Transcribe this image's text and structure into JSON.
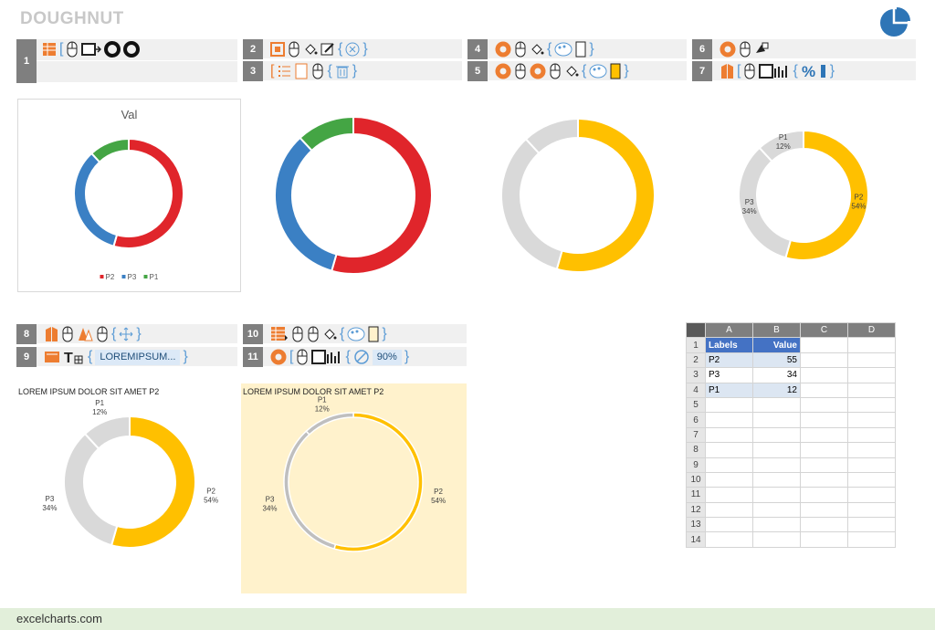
{
  "header": {
    "title": "DOUGHNUT",
    "brand_color": "#2e75b6"
  },
  "steps": [
    {
      "num": "1",
      "icons": [
        "table-orange-icon",
        "mouse-icon",
        "insert-chart-icon",
        "doughnut-black-icon"
      ]
    },
    {
      "num": "2",
      "icons": [
        "format-area-icon",
        "mouse-icon",
        "fill-icon",
        "edit-icon",
        "delete-circle-icon"
      ]
    },
    {
      "num": "3",
      "icons": [
        "legend-icon",
        "mouse-icon",
        "delete-icon"
      ]
    },
    {
      "num": "4",
      "icons": [
        "doughnut-orange-icon",
        "mouse-icon",
        "fill-icon",
        "palette-icon"
      ]
    },
    {
      "num": "5",
      "icons": [
        "doughnut-orange-icon",
        "mouse-icon",
        "fill-icon",
        "palette-icon"
      ]
    },
    {
      "num": "6",
      "icons": [
        "doughnut-orange-icon",
        "mouse-icon",
        "data-labels-icon"
      ]
    },
    {
      "num": "7",
      "icons": [
        "labels-orange-icon",
        "mouse-icon",
        "bars-icon",
        "percent-icon"
      ]
    },
    {
      "num": "8",
      "icons": [
        "labels-orange-icon",
        "mouse-icon",
        "move-icon"
      ]
    },
    {
      "num": "9",
      "icons": [
        "title-icon",
        "text-icon"
      ],
      "field": "LOREMIPSUM..."
    },
    {
      "num": "10",
      "icons": [
        "table-orange-icon",
        "mouse-icon",
        "fill-icon",
        "palette-icon"
      ]
    },
    {
      "num": "11",
      "icons": [
        "doughnut-orange-icon",
        "mouse-icon",
        "bars-icon",
        "no-icon"
      ],
      "field": "90%"
    }
  ],
  "chart_data": [
    {
      "type": "pie",
      "variant": "doughnut",
      "title": "Val",
      "categories": [
        "P2",
        "P3",
        "P1"
      ],
      "values": [
        55,
        34,
        12
      ],
      "colors": [
        "#e0252b",
        "#3b80c4",
        "#44a544"
      ],
      "legend": [
        "P2",
        "P3",
        "P1"
      ],
      "legend_position": "bottom"
    },
    {
      "type": "pie",
      "variant": "doughnut",
      "title": "",
      "categories": [
        "P2",
        "P3",
        "P1"
      ],
      "values": [
        55,
        34,
        12
      ],
      "colors": [
        "#e0252b",
        "#3b80c4",
        "#44a544"
      ]
    },
    {
      "type": "pie",
      "variant": "doughnut",
      "title": "",
      "categories": [
        "P2",
        "P3",
        "P1"
      ],
      "values": [
        55,
        34,
        12
      ],
      "colors": [
        "#ffc000",
        "#d9d9d9",
        "#d9d9d9"
      ]
    },
    {
      "type": "pie",
      "variant": "doughnut",
      "title": "",
      "categories": [
        "P2",
        "P3",
        "P1"
      ],
      "values": [
        55,
        34,
        12
      ],
      "colors": [
        "#ffc000",
        "#d9d9d9",
        "#d9d9d9"
      ],
      "labels": [
        "P2\n54%",
        "P3\n34%",
        "P1\n12%"
      ]
    },
    {
      "type": "pie",
      "variant": "doughnut",
      "title": "LOREM IPSUM DOLOR SIT AMET P2",
      "categories": [
        "P2",
        "P3",
        "P1"
      ],
      "values": [
        55,
        34,
        12
      ],
      "colors": [
        "#ffc000",
        "#d9d9d9",
        "#d9d9d9"
      ],
      "labels": [
        "P2\n54%",
        "P3\n34%",
        "P1\n12%"
      ]
    },
    {
      "type": "pie",
      "variant": "doughnut",
      "title": "LOREM IPSUM DOLOR SIT AMET P2",
      "categories": [
        "P2",
        "P3",
        "P1"
      ],
      "values": [
        55,
        34,
        12
      ],
      "colors": [
        "#ffc000",
        "#bfbfbf",
        "#bfbfbf"
      ],
      "labels": [
        "P2\n54%",
        "P3\n34%",
        "P1\n12%"
      ],
      "hole_size": "90%",
      "background": "#fff2cc"
    }
  ],
  "sheet": {
    "columns": [
      "A",
      "B",
      "C",
      "D"
    ],
    "header": [
      "Labels",
      "Value"
    ],
    "rows": [
      [
        "P2",
        "55"
      ],
      [
        "P3",
        "34"
      ],
      [
        "P1",
        "12"
      ]
    ],
    "row_numbers": [
      "1",
      "2",
      "3",
      "4",
      "5",
      "6",
      "7",
      "8",
      "9",
      "10",
      "11",
      "12",
      "13",
      "14"
    ]
  },
  "footer": {
    "site": "excelcharts.com"
  }
}
